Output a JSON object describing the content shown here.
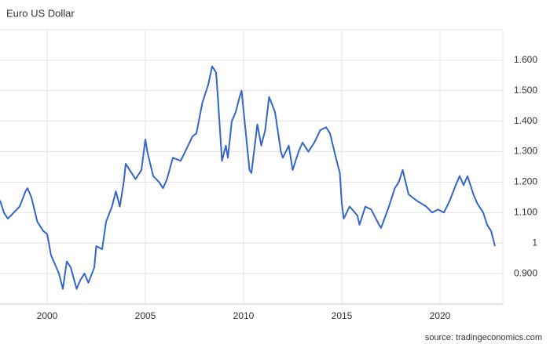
{
  "chart_data": {
    "type": "line",
    "title": "Euro US Dollar",
    "source": "source: tradingeconomics.com",
    "xlim": [
      1997.6,
      2023.2
    ],
    "ylim": [
      0.8,
      1.7
    ],
    "xticks": [
      2000,
      2005,
      2010,
      2015,
      2020
    ],
    "yticks": [
      {
        "value": 0.9,
        "label": "0.900"
      },
      1,
      {
        "value": 1.1,
        "label": "1.100"
      },
      {
        "value": 1.2,
        "label": "1.200"
      },
      {
        "value": 1.3,
        "label": "1.300"
      },
      {
        "value": 1.4,
        "label": "1.400"
      },
      {
        "value": 1.5,
        "label": "1.500"
      },
      {
        "value": 1.6,
        "label": "1.600"
      }
    ],
    "grid": true,
    "series": [
      {
        "color": "#3366cc",
        "x": [
          1997.6,
          1997.8,
          1998.0,
          1998.3,
          1998.6,
          1998.9,
          1999.0,
          1999.2,
          1999.5,
          1999.8,
          2000.0,
          2000.2,
          2000.4,
          2000.6,
          2000.8,
          2001.0,
          2001.2,
          2001.5,
          2001.7,
          2001.9,
          2002.1,
          2002.4,
          2002.5,
          2002.8,
          2003.0,
          2003.3,
          2003.5,
          2003.7,
          2003.9,
          2004.0,
          2004.3,
          2004.5,
          2004.8,
          2005.0,
          2005.1,
          2005.4,
          2005.7,
          2005.9,
          2006.1,
          2006.4,
          2006.8,
          2007.1,
          2007.4,
          2007.6,
          2007.9,
          2008.2,
          2008.4,
          2008.6,
          2008.7,
          2008.9,
          2009.1,
          2009.2,
          2009.4,
          2009.6,
          2009.8,
          2009.9,
          2010.1,
          2010.3,
          2010.4,
          2010.7,
          2010.9,
          2011.1,
          2011.3,
          2011.6,
          2011.9,
          2012.0,
          2012.3,
          2012.5,
          2012.8,
          2013.0,
          2013.3,
          2013.6,
          2013.9,
          2014.2,
          2014.4,
          2014.7,
          2014.9,
          2015.0,
          2015.1,
          2015.4,
          2015.8,
          2015.9,
          2016.2,
          2016.5,
          2016.9,
          2017.0,
          2017.4,
          2017.7,
          2017.9,
          2018.1,
          2018.4,
          2018.8,
          2019.3,
          2019.6,
          2019.9,
          2020.2,
          2020.5,
          2020.8,
          2021.0,
          2021.2,
          2021.4,
          2021.7,
          2021.9,
          2022.2,
          2022.4,
          2022.6,
          2022.8
        ],
        "values": [
          1.14,
          1.1,
          1.08,
          1.1,
          1.12,
          1.17,
          1.18,
          1.15,
          1.07,
          1.04,
          1.03,
          0.96,
          0.93,
          0.9,
          0.85,
          0.94,
          0.92,
          0.85,
          0.88,
          0.9,
          0.87,
          0.92,
          0.99,
          0.98,
          1.07,
          1.12,
          1.17,
          1.12,
          1.2,
          1.26,
          1.23,
          1.21,
          1.24,
          1.34,
          1.3,
          1.22,
          1.2,
          1.18,
          1.21,
          1.28,
          1.27,
          1.31,
          1.35,
          1.36,
          1.46,
          1.52,
          1.58,
          1.56,
          1.47,
          1.27,
          1.32,
          1.28,
          1.4,
          1.43,
          1.48,
          1.5,
          1.37,
          1.24,
          1.23,
          1.39,
          1.32,
          1.37,
          1.48,
          1.43,
          1.3,
          1.28,
          1.32,
          1.24,
          1.3,
          1.33,
          1.3,
          1.33,
          1.37,
          1.38,
          1.36,
          1.28,
          1.23,
          1.13,
          1.08,
          1.12,
          1.09,
          1.06,
          1.12,
          1.11,
          1.06,
          1.05,
          1.12,
          1.18,
          1.2,
          1.24,
          1.16,
          1.14,
          1.12,
          1.1,
          1.11,
          1.1,
          1.14,
          1.19,
          1.22,
          1.19,
          1.22,
          1.16,
          1.13,
          1.1,
          1.06,
          1.04,
          0.99
        ]
      }
    ]
  }
}
